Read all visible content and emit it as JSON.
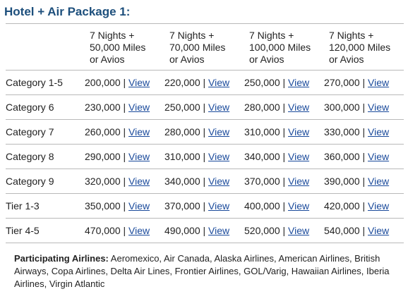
{
  "title": "Hotel + Air Package 1:",
  "table": {
    "columns": [
      {
        "lines": [
          "7 Nights +",
          "50,000 Miles",
          "or Avios"
        ]
      },
      {
        "lines": [
          "7 Nights +",
          "70,000 Miles",
          "or Avios"
        ]
      },
      {
        "lines": [
          "7 Nights +",
          "100,000 Miles",
          "or Avios"
        ]
      },
      {
        "lines": [
          "7 Nights +",
          "120,000 Miles",
          "or Avios"
        ]
      }
    ],
    "separator": "|",
    "link_label": "View",
    "rows": [
      {
        "label": "Category 1-5",
        "values": [
          "200,000",
          "220,000",
          "250,000",
          "270,000"
        ]
      },
      {
        "label": "Category 6",
        "values": [
          "230,000",
          "250,000",
          "280,000",
          "300,000"
        ]
      },
      {
        "label": "Category 7",
        "values": [
          "260,000",
          "280,000",
          "310,000",
          "330,000"
        ]
      },
      {
        "label": "Category 8",
        "values": [
          "290,000",
          "310,000",
          "340,000",
          "360,000"
        ]
      },
      {
        "label": "Category 9",
        "values": [
          "320,000",
          "340,000",
          "370,000",
          "390,000"
        ]
      },
      {
        "label": "Tier 1-3",
        "values": [
          "350,000",
          "370,000",
          "400,000",
          "420,000"
        ]
      },
      {
        "label": "Tier 4-5",
        "values": [
          "470,000",
          "490,000",
          "520,000",
          "540,000"
        ]
      }
    ]
  },
  "footnote": {
    "label": "Participating Airlines:",
    "text": "Aeromexico, Air Canada, Alaska Airlines, American Airlines, British Airways, Copa Airlines, Delta Air Lines, Frontier Airlines, GOL/Varig, Hawaiian Airlines, Iberia Airlines, Virgin Atlantic"
  },
  "colors": {
    "title": "#1d4f7c",
    "link": "#1a4a9b",
    "rule": "#b9b9b9",
    "text": "#222222"
  }
}
